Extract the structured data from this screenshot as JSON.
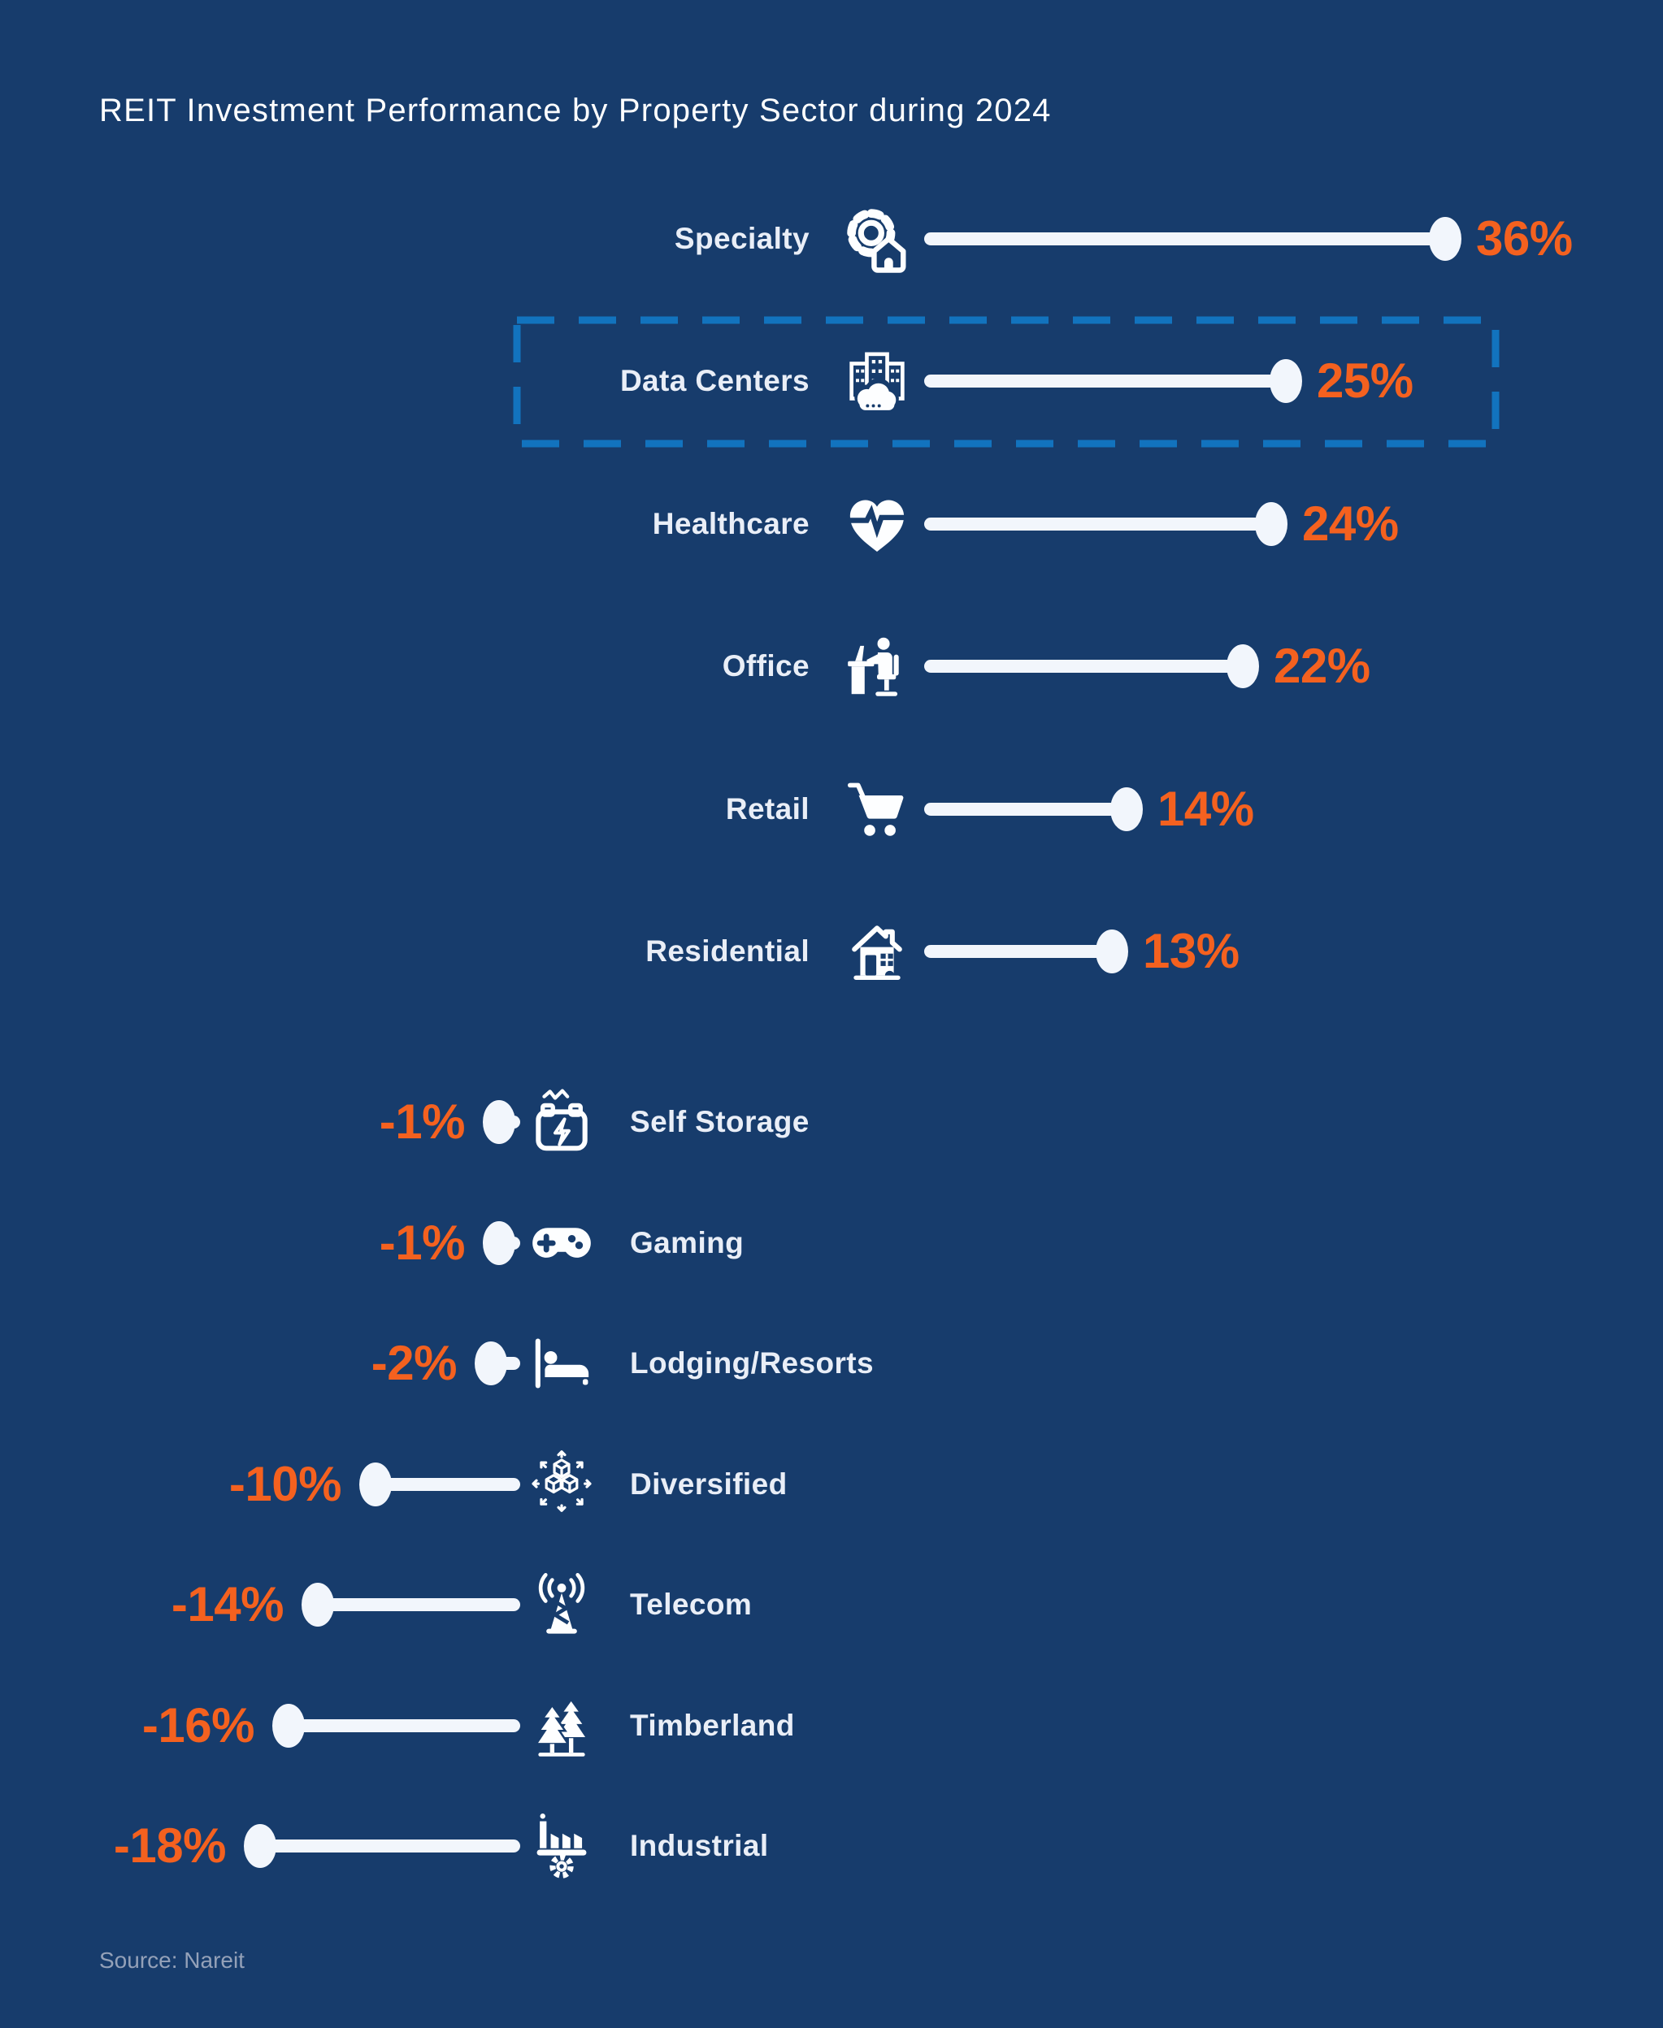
{
  "title": "REIT Investment Performance by Property Sector during 2024",
  "source": "Source: Nareit",
  "colors": {
    "background": "#173C6C",
    "accent_orange": "#F4611F",
    "line_white": "#F2F6FC",
    "label_light": "#E9EEF7",
    "highlight_border_blue": "#1273BE",
    "source_gray": "#94A1B8",
    "icon_white": "#FDFEFF"
  },
  "chart_data": {
    "type": "bar",
    "variant": "lollipop",
    "orientation": "horizontal",
    "title": "REIT Investment Performance by Property Sector during 2024",
    "unit": "percent",
    "source": "Source: Nareit",
    "grid": false,
    "legend": false,
    "highlighted_category": "Data Centers",
    "categories": [
      "Specialty",
      "Data Centers",
      "Healthcare",
      "Office",
      "Retail",
      "Residential",
      "Self Storage",
      "Gaming",
      "Lodging/Resorts",
      "Diversified",
      "Telecom",
      "Timberland",
      "Industrial"
    ],
    "values": [
      36,
      25,
      24,
      22,
      14,
      13,
      -1,
      -1,
      -2,
      -10,
      -14,
      -16,
      -18
    ],
    "value_labels": [
      "36%",
      "25%",
      "24%",
      "22%",
      "14%",
      "13%",
      "-1%",
      "-1%",
      "-2%",
      "-10%",
      "-14%",
      "-16%",
      "-18%"
    ],
    "sectors": [
      {
        "label": "Specialty",
        "value": 36,
        "value_label": "36%",
        "icon": "gear-house-icon",
        "highlighted": false
      },
      {
        "label": "Data Centers",
        "value": 25,
        "value_label": "25%",
        "icon": "server-cloud-icon",
        "highlighted": true
      },
      {
        "label": "Healthcare",
        "value": 24,
        "value_label": "24%",
        "icon": "heart-pulse-icon",
        "highlighted": false
      },
      {
        "label": "Office",
        "value": 22,
        "value_label": "22%",
        "icon": "person-desk-icon",
        "highlighted": false
      },
      {
        "label": "Retail",
        "value": 14,
        "value_label": "14%",
        "icon": "shopping-cart-icon",
        "highlighted": false
      },
      {
        "label": "Residential",
        "value": 13,
        "value_label": "13%",
        "icon": "house-icon",
        "highlighted": false
      },
      {
        "label": "Self Storage",
        "value": -1,
        "value_label": "-1%",
        "icon": "storage-battery-icon",
        "highlighted": false
      },
      {
        "label": "Gaming",
        "value": -1,
        "value_label": "-1%",
        "icon": "gamepad-icon",
        "highlighted": false
      },
      {
        "label": "Lodging/Resorts",
        "value": -2,
        "value_label": "-2%",
        "icon": "bed-icon",
        "highlighted": false
      },
      {
        "label": "Diversified",
        "value": -10,
        "value_label": "-10%",
        "icon": "cubes-arrows-icon",
        "highlighted": false
      },
      {
        "label": "Telecom",
        "value": -14,
        "value_label": "-14%",
        "icon": "radio-tower-icon",
        "highlighted": false
      },
      {
        "label": "Timberland",
        "value": -16,
        "value_label": "-16%",
        "icon": "pine-trees-icon",
        "highlighted": false
      },
      {
        "label": "Industrial",
        "value": -18,
        "value_label": "-18%",
        "icon": "factory-gear-icon",
        "highlighted": false
      }
    ]
  }
}
